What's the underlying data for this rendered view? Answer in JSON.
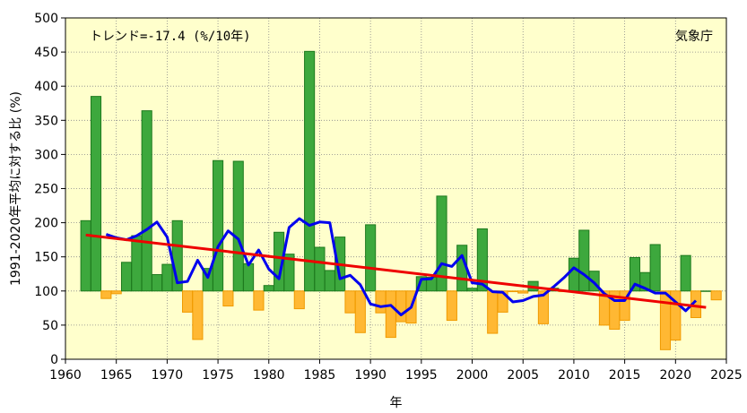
{
  "chart_data": {
    "type": "bar",
    "ylabel": "1991-2020年平均に対する比 (%)",
    "xlabel": "年",
    "annotation": "トレンド=-17.4 (%/10年)",
    "source": "気象庁",
    "xlim": [
      1960,
      2025
    ],
    "ylim": [
      0,
      500
    ],
    "baseline": 100,
    "xticks": [
      1960,
      1965,
      1970,
      1975,
      1980,
      1985,
      1990,
      1995,
      2000,
      2005,
      2010,
      2015,
      2020,
      2025
    ],
    "yticks": [
      0,
      50,
      100,
      150,
      200,
      250,
      300,
      350,
      400,
      450,
      500
    ],
    "grid": true,
    "colors": {
      "above": "#3da83d",
      "above_edge": "#1e7a1e",
      "below": "#ffb833",
      "below_edge": "#f09a00",
      "moving_average": "#0000ee",
      "trend": "#ee0000",
      "plot_bg": "#ffffcc",
      "grid": "#888888"
    },
    "series": [
      {
        "name": "annual_ratio",
        "x": [
          1962,
          1963,
          1964,
          1965,
          1966,
          1967,
          1968,
          1969,
          1970,
          1971,
          1972,
          1973,
          1974,
          1975,
          1976,
          1977,
          1978,
          1979,
          1980,
          1981,
          1982,
          1983,
          1984,
          1985,
          1986,
          1987,
          1988,
          1989,
          1990,
          1991,
          1992,
          1993,
          1994,
          1995,
          1996,
          1997,
          1998,
          1999,
          2000,
          2001,
          2002,
          2003,
          2004,
          2005,
          2006,
          2007,
          2008,
          2009,
          2010,
          2011,
          2012,
          2013,
          2014,
          2015,
          2016,
          2017,
          2018,
          2019,
          2020,
          2021,
          2022,
          2023,
          2024
        ],
        "values": [
          203,
          385,
          89,
          96,
          142,
          181,
          364,
          124,
          139,
          203,
          69,
          29,
          133,
          291,
          78,
          290,
          140,
          72,
          108,
          186,
          154,
          74,
          451,
          164,
          130,
          179,
          68,
          39,
          197,
          68,
          32,
          55,
          53,
          121,
          120,
          239,
          57,
          167,
          104,
          191,
          38,
          69,
          99,
          97,
          114,
          52,
          104,
          99,
          148,
          189,
          129,
          50,
          44,
          57,
          149,
          127,
          168,
          14,
          28,
          152,
          61,
          100,
          87
        ]
      },
      {
        "name": "moving_average_5yr",
        "x": [
          1964,
          1965,
          1966,
          1967,
          1968,
          1969,
          1970,
          1971,
          1972,
          1973,
          1974,
          1975,
          1976,
          1977,
          1978,
          1979,
          1980,
          1981,
          1982,
          1983,
          1984,
          1985,
          1986,
          1987,
          1988,
          1989,
          1990,
          1991,
          1992,
          1993,
          1994,
          1995,
          1996,
          1997,
          1998,
          1999,
          2000,
          2001,
          2002,
          2003,
          2004,
          2005,
          2006,
          2007,
          2008,
          2009,
          2010,
          2011,
          2012,
          2013,
          2014,
          2015,
          2016,
          2017,
          2018,
          2019,
          2020,
          2021,
          2022
        ],
        "values": [
          183,
          178,
          175,
          181,
          190,
          201,
          179,
          112,
          114,
          145,
          120,
          165,
          188,
          176,
          138,
          160,
          132,
          118,
          193,
          206,
          196,
          201,
          200,
          118,
          123,
          109,
          81,
          77,
          79,
          65,
          76,
          117,
          118,
          140,
          136,
          152,
          112,
          110,
          99,
          98,
          84,
          86,
          92,
          94,
          106,
          119,
          134,
          124,
          112,
          96,
          86,
          86,
          110,
          104,
          97,
          97,
          84,
          71,
          86
        ]
      },
      {
        "name": "trend",
        "x": [
          1962,
          2023
        ],
        "values": [
          182,
          76
        ]
      }
    ]
  }
}
